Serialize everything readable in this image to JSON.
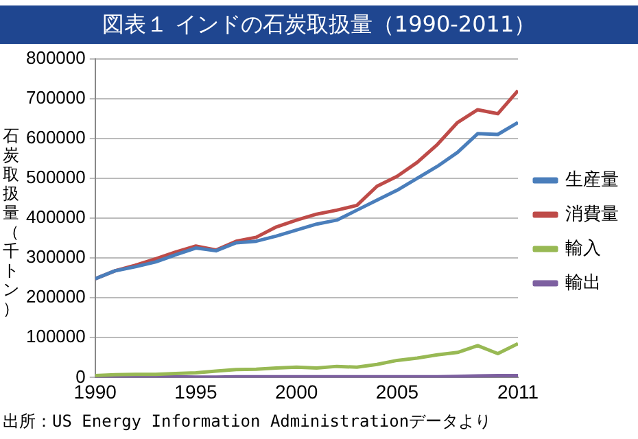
{
  "chart_data": {
    "type": "line",
    "title": "図表１ インドの石炭取扱量（1990-2011）",
    "ylabel": "石炭取扱量（千トン）",
    "x": [
      1990,
      1991,
      1992,
      1993,
      1994,
      1995,
      1996,
      1997,
      1998,
      1999,
      2000,
      2001,
      2002,
      2003,
      2004,
      2005,
      2006,
      2007,
      2008,
      2009,
      2010,
      2011
    ],
    "series": [
      {
        "name": "生産量",
        "color": "#4a7ebb",
        "values": [
          248000,
          268000,
          278000,
          290000,
          308000,
          325000,
          318000,
          338000,
          342000,
          355000,
          370000,
          385000,
          395000,
          420000,
          445000,
          470000,
          500000,
          530000,
          565000,
          612000,
          610000,
          640000
        ]
      },
      {
        "name": "消費量",
        "color": "#be4b48",
        "values": [
          248000,
          268000,
          282000,
          298000,
          315000,
          330000,
          320000,
          342000,
          352000,
          378000,
          395000,
          410000,
          420000,
          432000,
          480000,
          505000,
          540000,
          585000,
          640000,
          672000,
          662000,
          720000
        ]
      },
      {
        "name": "輸入",
        "color": "#98b954",
        "values": [
          5000,
          7000,
          8000,
          8000,
          10000,
          12000,
          16000,
          20000,
          21000,
          24000,
          26000,
          24000,
          28000,
          26000,
          33000,
          43000,
          49000,
          57000,
          63000,
          80000,
          60000,
          85000
        ]
      },
      {
        "name": "輸出",
        "color": "#7d60a0",
        "values": [
          2000,
          2000,
          2000,
          2000,
          2000,
          1000,
          1000,
          2000,
          2000,
          2000,
          2000,
          2000,
          2000,
          2000,
          2000,
          2000,
          2000,
          2000,
          3000,
          4000,
          5000,
          5000
        ]
      }
    ],
    "xlim": [
      1990,
      2011
    ],
    "xticks": [
      1990,
      1995,
      2000,
      2005,
      2011
    ],
    "ylim": [
      0,
      800000
    ],
    "yticks": [
      0,
      100000,
      200000,
      300000,
      400000,
      500000,
      600000,
      700000,
      800000
    ],
    "grid": "y",
    "legend": "right",
    "marker": "none",
    "line_style": "solid",
    "annotations": [
      "出所：US Energy Information Administrationデータより"
    ]
  }
}
